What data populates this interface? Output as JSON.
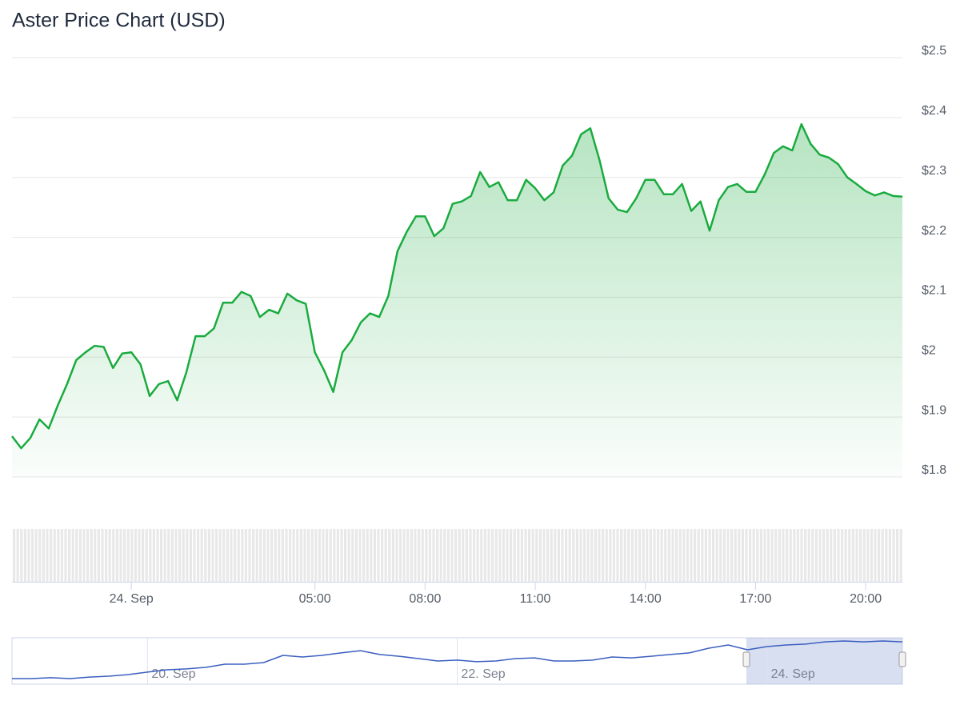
{
  "chart_data": [
    {
      "type": "line",
      "title": "Aster Price Chart (USD)",
      "color": "#1aab3f",
      "grid": true,
      "categories": [
        null,
        null,
        null,
        null,
        null,
        null,
        null,
        null,
        null,
        null,
        null,
        null,
        null,
        "24. Sep",
        null,
        null,
        null,
        null,
        null,
        null,
        null,
        null,
        null,
        null,
        null,
        null,
        null,
        null,
        null,
        null,
        null,
        null,
        null,
        "05:00",
        null,
        null,
        null,
        null,
        null,
        null,
        null,
        null,
        null,
        null,
        null,
        "08:00",
        null,
        null,
        null,
        null,
        null,
        null,
        null,
        null,
        null,
        null,
        null,
        "11:00",
        null,
        null,
        null,
        null,
        null,
        null,
        null,
        null,
        null,
        null,
        null,
        "14:00",
        null,
        null,
        null,
        null,
        null,
        null,
        null,
        null,
        null,
        null,
        null,
        "17:00",
        null,
        null,
        null,
        null,
        null,
        null,
        null,
        null,
        null,
        null,
        null,
        "20:00",
        null,
        null,
        null,
        null
      ],
      "values": [
        1.868,
        1.848,
        1.865,
        1.896,
        1.881,
        1.92,
        1.955,
        1.995,
        2.008,
        2.019,
        2.017,
        1.982,
        2.006,
        2.008,
        1.988,
        1.935,
        1.955,
        1.96,
        1.928,
        1.975,
        2.035,
        2.035,
        2.048,
        2.091,
        2.091,
        2.109,
        2.102,
        2.067,
        2.079,
        2.073,
        2.106,
        2.095,
        2.089,
        2.008,
        1.978,
        1.942,
        2.008,
        2.028,
        2.058,
        2.073,
        2.067,
        2.102,
        2.177,
        2.209,
        2.235,
        2.235,
        2.202,
        2.215,
        2.256,
        2.26,
        2.269,
        2.309,
        2.284,
        2.292,
        2.262,
        2.262,
        2.296,
        2.282,
        2.262,
        2.275,
        2.32,
        2.336,
        2.372,
        2.382,
        2.329,
        2.265,
        2.246,
        2.242,
        2.265,
        2.296,
        2.296,
        2.272,
        2.272,
        2.289,
        2.244,
        2.26,
        2.211,
        2.262,
        2.284,
        2.289,
        2.276,
        2.276,
        2.305,
        2.341,
        2.352,
        2.345,
        2.389,
        2.356,
        2.338,
        2.333,
        2.322,
        2.3,
        2.289,
        2.277,
        2.27,
        2.275,
        2.269,
        2.268
      ],
      "ylim": [
        1.8,
        2.5
      ],
      "yticks": [
        {
          "value": 1.8,
          "label": "$1.8"
        },
        {
          "value": 1.9,
          "label": "$1.9"
        },
        {
          "value": 2,
          "label": "$2"
        },
        {
          "value": 2.1,
          "label": "$2.1"
        },
        {
          "value": 2.2,
          "label": "$2.2"
        },
        {
          "value": 2.3,
          "label": "$2.3"
        },
        {
          "value": 2.4,
          "label": "$2.4"
        },
        {
          "value": 2.5,
          "label": "$2.5"
        }
      ]
    },
    {
      "type": "line",
      "color": "#3b5fc0",
      "categories": [
        null,
        null,
        null,
        null,
        null,
        null,
        null,
        "20. Sep",
        null,
        null,
        null,
        null,
        null,
        null,
        null,
        null,
        null,
        null,
        null,
        null,
        null,
        null,
        null,
        "22. Sep",
        null,
        null,
        null,
        null,
        null,
        null,
        null,
        null,
        null,
        null,
        null,
        null,
        null,
        null,
        null,
        "24. Sep",
        null,
        null,
        null,
        null,
        null,
        null,
        null
      ],
      "values": [
        0.18,
        0.18,
        0.23,
        0.18,
        0.27,
        0.32,
        0.41,
        0.55,
        0.68,
        0.73,
        0.82,
        1.0,
        1.0,
        1.09,
        1.5,
        1.41,
        1.5,
        1.64,
        1.77,
        1.55,
        1.45,
        1.32,
        1.18,
        1.23,
        1.14,
        1.18,
        1.32,
        1.36,
        1.18,
        1.18,
        1.23,
        1.41,
        1.36,
        1.45,
        1.55,
        1.64,
        1.91,
        2.09,
        1.82,
        2.0,
        2.09,
        2.14,
        2.27,
        2.32,
        2.27,
        2.32,
        2.27
      ],
      "ylim": [
        0,
        2.5
      ]
    }
  ]
}
